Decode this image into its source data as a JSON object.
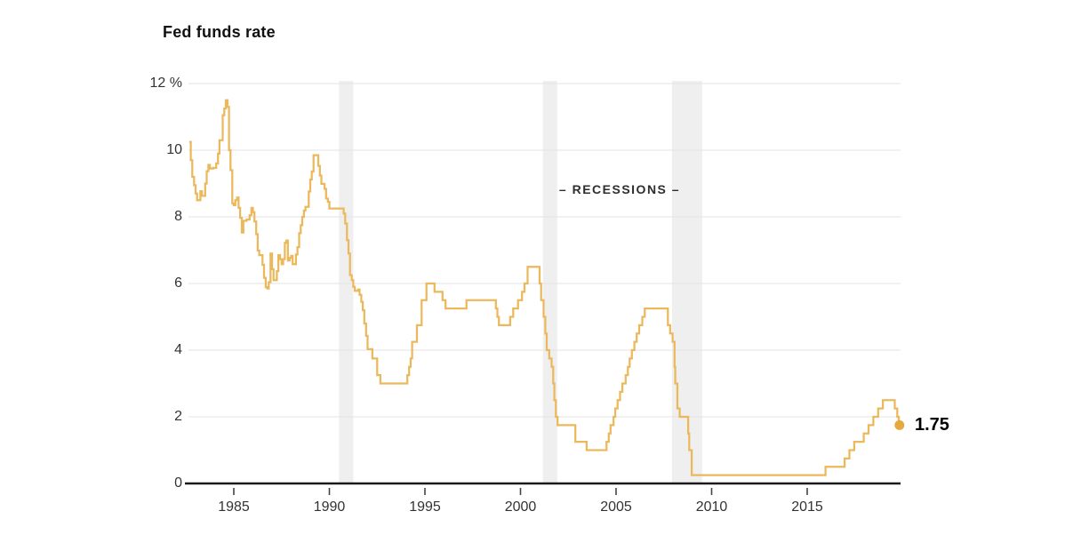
{
  "chart": {
    "title": "Fed funds rate",
    "recessions_label": "– RECESSIONS –",
    "end_label": "1.75"
  },
  "chart_data": {
    "type": "line",
    "subtype": "step",
    "title": "Fed funds rate",
    "xlabel": "",
    "ylabel": "%",
    "xlim": [
      1982.6,
      2019.9
    ],
    "ylim": [
      0,
      12
    ],
    "grid": "horizontal",
    "legend_position": "none",
    "y_ticks": [
      {
        "value": 12,
        "label": "12 %"
      },
      {
        "value": 10,
        "label": "10"
      },
      {
        "value": 8,
        "label": "8"
      },
      {
        "value": 6,
        "label": "6"
      },
      {
        "value": 4,
        "label": "4"
      },
      {
        "value": 2,
        "label": "2"
      },
      {
        "value": 0,
        "label": "0"
      }
    ],
    "x_ticks": [
      {
        "value": 1985,
        "label": "1985"
      },
      {
        "value": 1990,
        "label": "1990"
      },
      {
        "value": 1995,
        "label": "1995"
      },
      {
        "value": 2000,
        "label": "2000"
      },
      {
        "value": 2005,
        "label": "2005"
      },
      {
        "value": 2010,
        "label": "2010"
      },
      {
        "value": 2015,
        "label": "2015"
      }
    ],
    "recessions_label": "– RECESSIONS –",
    "recessions": [
      [
        1990.5,
        1991.25
      ],
      [
        2001.17,
        2001.92
      ],
      [
        2007.92,
        2009.5
      ]
    ],
    "colors": {
      "line": "#EBB95C",
      "dot": "#E6A93F",
      "recession_band": "#EFEFEF",
      "gridline": "#E3E3E3",
      "axis": "#1a1a1a",
      "tick_text": "#333333"
    },
    "series": [
      {
        "name": "Fed funds rate",
        "end_x": 2019.83,
        "end_value": 1.75,
        "end_label": "1.75",
        "points": [
          [
            1982.67,
            10.25
          ],
          [
            1982.75,
            9.7
          ],
          [
            1982.83,
            9.2
          ],
          [
            1982.92,
            8.95
          ],
          [
            1983.0,
            8.7
          ],
          [
            1983.08,
            8.5
          ],
          [
            1983.25,
            8.77
          ],
          [
            1983.33,
            8.63
          ],
          [
            1983.5,
            9.0
          ],
          [
            1983.58,
            9.37
          ],
          [
            1983.67,
            9.56
          ],
          [
            1983.75,
            9.45
          ],
          [
            1983.92,
            9.47
          ],
          [
            1984.08,
            9.6
          ],
          [
            1984.17,
            9.9
          ],
          [
            1984.25,
            10.3
          ],
          [
            1984.42,
            11.05
          ],
          [
            1984.5,
            11.25
          ],
          [
            1984.58,
            11.5
          ],
          [
            1984.67,
            11.3
          ],
          [
            1984.75,
            10.0
          ],
          [
            1984.83,
            9.4
          ],
          [
            1984.92,
            8.4
          ],
          [
            1985.0,
            8.35
          ],
          [
            1985.08,
            8.5
          ],
          [
            1985.17,
            8.58
          ],
          [
            1985.25,
            8.27
          ],
          [
            1985.33,
            7.97
          ],
          [
            1985.42,
            7.53
          ],
          [
            1985.5,
            7.88
          ],
          [
            1985.67,
            7.92
          ],
          [
            1985.83,
            8.05
          ],
          [
            1985.92,
            8.27
          ],
          [
            1986.0,
            8.14
          ],
          [
            1986.08,
            7.86
          ],
          [
            1986.17,
            7.48
          ],
          [
            1986.25,
            6.99
          ],
          [
            1986.33,
            6.85
          ],
          [
            1986.5,
            6.56
          ],
          [
            1986.58,
            6.17
          ],
          [
            1986.67,
            5.89
          ],
          [
            1986.75,
            5.85
          ],
          [
            1986.83,
            6.04
          ],
          [
            1986.92,
            6.9
          ],
          [
            1987.0,
            6.43
          ],
          [
            1987.08,
            6.1
          ],
          [
            1987.25,
            6.37
          ],
          [
            1987.33,
            6.85
          ],
          [
            1987.42,
            6.73
          ],
          [
            1987.5,
            6.58
          ],
          [
            1987.58,
            6.73
          ],
          [
            1987.67,
            7.22
          ],
          [
            1987.75,
            7.29
          ],
          [
            1987.83,
            6.69
          ],
          [
            1987.92,
            6.77
          ],
          [
            1988.0,
            6.83
          ],
          [
            1988.08,
            6.58
          ],
          [
            1988.25,
            6.87
          ],
          [
            1988.33,
            7.09
          ],
          [
            1988.42,
            7.51
          ],
          [
            1988.5,
            7.75
          ],
          [
            1988.58,
            8.0
          ],
          [
            1988.67,
            8.19
          ],
          [
            1988.75,
            8.3
          ],
          [
            1988.92,
            8.76
          ],
          [
            1989.0,
            9.12
          ],
          [
            1989.08,
            9.36
          ],
          [
            1989.17,
            9.85
          ],
          [
            1989.42,
            9.53
          ],
          [
            1989.5,
            9.24
          ],
          [
            1989.58,
            8.99
          ],
          [
            1989.75,
            8.84
          ],
          [
            1989.83,
            8.55
          ],
          [
            1989.92,
            8.45
          ],
          [
            1990.0,
            8.25
          ],
          [
            1990.75,
            8.1
          ],
          [
            1990.83,
            7.8
          ],
          [
            1990.92,
            7.3
          ],
          [
            1991.0,
            6.9
          ],
          [
            1991.08,
            6.25
          ],
          [
            1991.17,
            6.1
          ],
          [
            1991.25,
            5.9
          ],
          [
            1991.33,
            5.78
          ],
          [
            1991.5,
            5.82
          ],
          [
            1991.58,
            5.66
          ],
          [
            1991.67,
            5.45
          ],
          [
            1991.75,
            5.2
          ],
          [
            1991.83,
            4.8
          ],
          [
            1991.92,
            4.43
          ],
          [
            1992.0,
            4.03
          ],
          [
            1992.25,
            3.75
          ],
          [
            1992.5,
            3.25
          ],
          [
            1992.67,
            3.0
          ],
          [
            1994.08,
            3.25
          ],
          [
            1994.17,
            3.5
          ],
          [
            1994.25,
            3.75
          ],
          [
            1994.33,
            4.25
          ],
          [
            1994.58,
            4.75
          ],
          [
            1994.83,
            5.5
          ],
          [
            1995.08,
            6.0
          ],
          [
            1995.5,
            5.75
          ],
          [
            1995.92,
            5.5
          ],
          [
            1996.08,
            5.25
          ],
          [
            1997.17,
            5.5
          ],
          [
            1998.71,
            5.25
          ],
          [
            1998.79,
            5.0
          ],
          [
            1998.87,
            4.75
          ],
          [
            1999.46,
            5.0
          ],
          [
            1999.62,
            5.25
          ],
          [
            1999.87,
            5.5
          ],
          [
            2000.08,
            5.75
          ],
          [
            2000.21,
            6.0
          ],
          [
            2000.37,
            6.5
          ],
          [
            2001.0,
            6.0
          ],
          [
            2001.08,
            5.5
          ],
          [
            2001.21,
            5.0
          ],
          [
            2001.3,
            4.5
          ],
          [
            2001.37,
            4.0
          ],
          [
            2001.5,
            3.75
          ],
          [
            2001.63,
            3.5
          ],
          [
            2001.71,
            3.0
          ],
          [
            2001.77,
            2.5
          ],
          [
            2001.85,
            2.0
          ],
          [
            2001.94,
            1.75
          ],
          [
            2002.87,
            1.25
          ],
          [
            2003.46,
            1.0
          ],
          [
            2004.5,
            1.25
          ],
          [
            2004.62,
            1.5
          ],
          [
            2004.71,
            1.75
          ],
          [
            2004.87,
            2.0
          ],
          [
            2004.96,
            2.25
          ],
          [
            2005.08,
            2.5
          ],
          [
            2005.21,
            2.75
          ],
          [
            2005.33,
            3.0
          ],
          [
            2005.5,
            3.25
          ],
          [
            2005.62,
            3.5
          ],
          [
            2005.71,
            3.75
          ],
          [
            2005.83,
            4.0
          ],
          [
            2005.96,
            4.25
          ],
          [
            2006.08,
            4.5
          ],
          [
            2006.21,
            4.75
          ],
          [
            2006.37,
            5.0
          ],
          [
            2006.5,
            5.25
          ],
          [
            2007.71,
            4.75
          ],
          [
            2007.83,
            4.5
          ],
          [
            2007.96,
            4.25
          ],
          [
            2008.06,
            3.5
          ],
          [
            2008.1,
            3.0
          ],
          [
            2008.21,
            2.25
          ],
          [
            2008.33,
            2.0
          ],
          [
            2008.77,
            1.5
          ],
          [
            2008.83,
            1.0
          ],
          [
            2008.96,
            0.25
          ],
          [
            2015.96,
            0.5
          ],
          [
            2016.96,
            0.75
          ],
          [
            2017.21,
            1.0
          ],
          [
            2017.46,
            1.25
          ],
          [
            2017.96,
            1.5
          ],
          [
            2018.21,
            1.75
          ],
          [
            2018.46,
            2.0
          ],
          [
            2018.71,
            2.25
          ],
          [
            2018.96,
            2.5
          ],
          [
            2019.58,
            2.25
          ],
          [
            2019.71,
            2.0
          ],
          [
            2019.79,
            1.75
          ]
        ]
      }
    ]
  }
}
